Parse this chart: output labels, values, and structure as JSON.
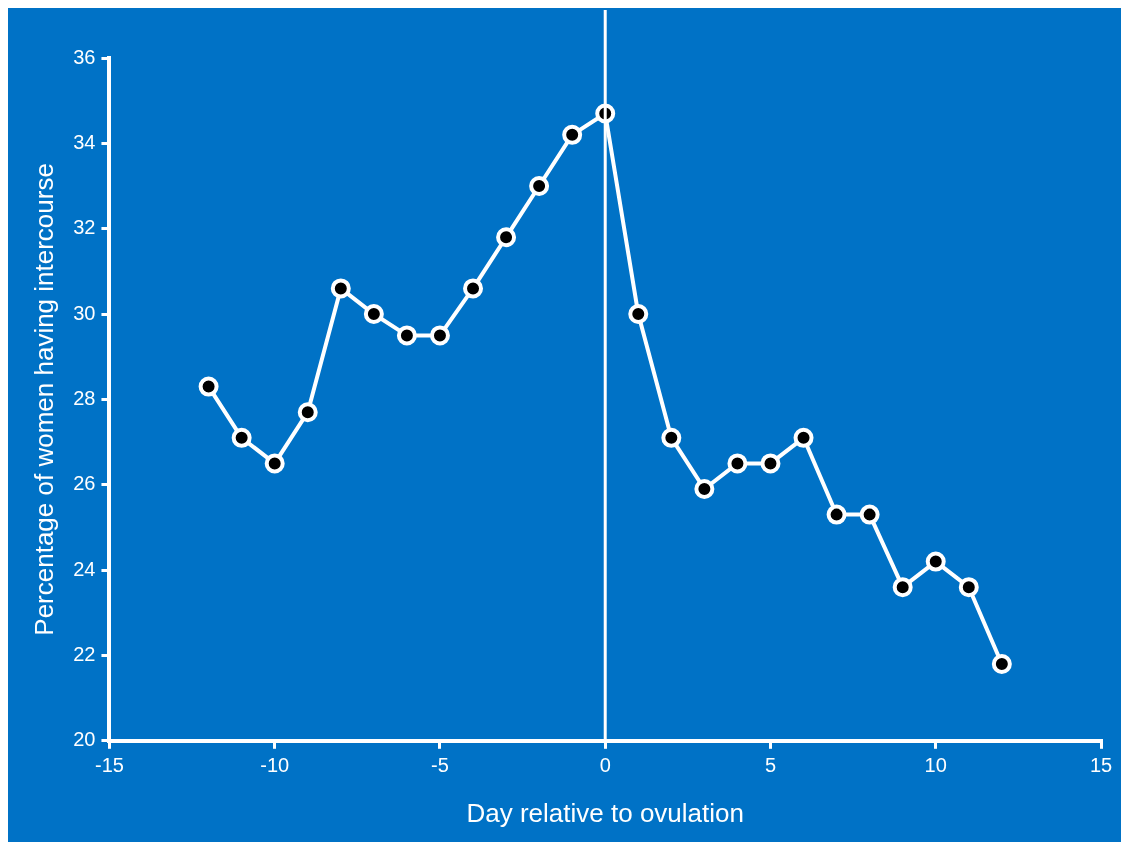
{
  "chart_data": {
    "type": "line",
    "xlabel": "Day relative to ovulation",
    "ylabel": "Percentage of women having intercourse",
    "x": [
      -12,
      -11,
      -10,
      -9,
      -8,
      -7,
      -6,
      -5,
      -4,
      -3,
      -2,
      -1,
      0,
      1,
      2,
      3,
      4,
      5,
      6,
      7,
      8,
      9,
      10,
      11,
      12
    ],
    "values": [
      28.3,
      27.1,
      26.5,
      27.7,
      30.6,
      30.0,
      29.5,
      29.5,
      30.6,
      31.8,
      33.0,
      34.2,
      34.7,
      30.0,
      27.1,
      25.9,
      26.5,
      26.5,
      27.1,
      25.3,
      25.3,
      23.6,
      24.2,
      23.6,
      21.8
    ],
    "color": "#ffffff",
    "marker": "circle",
    "line_style": "solid",
    "xlim": [
      -15,
      15
    ],
    "xticks": [
      -15,
      -10,
      -5,
      0,
      5,
      10,
      15
    ],
    "ylim": [
      20,
      36
    ],
    "yticks": [
      20,
      22,
      24,
      26,
      28,
      30,
      32,
      34,
      36
    ],
    "ref_lines": [
      {
        "axis": "x",
        "value": 0,
        "color": "#ffffff"
      }
    ],
    "grid": false,
    "legend": false
  }
}
